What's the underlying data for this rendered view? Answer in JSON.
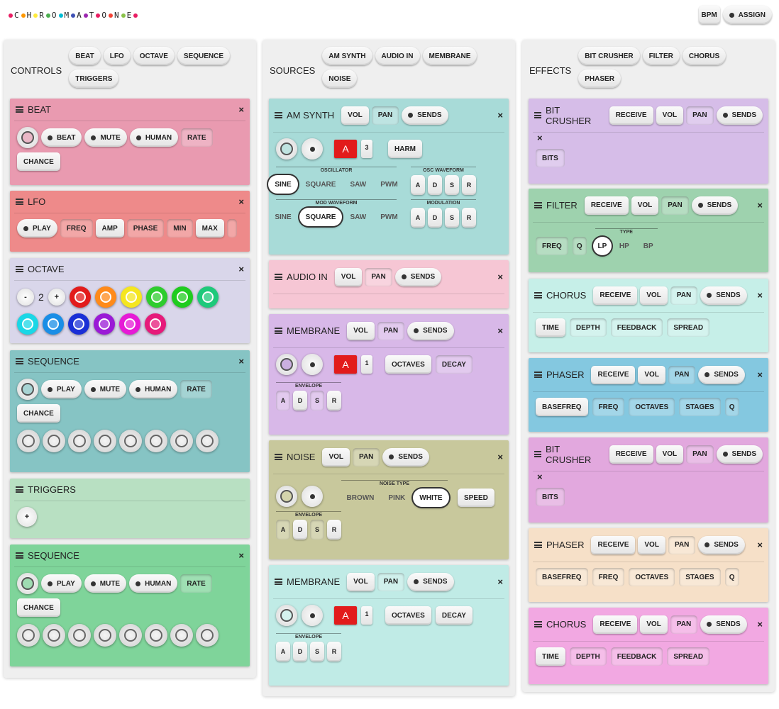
{
  "app": {
    "logo_letters": [
      "C",
      "H",
      "R",
      "O",
      "M",
      "A",
      "T",
      "O",
      "N",
      "E"
    ],
    "logo_colors": [
      "#e91e63",
      "#ff9800",
      "#ffeb3b",
      "#4caf50",
      "#00bcd4",
      "#3f51b5",
      "#9c27b0",
      "#e91e63",
      "#f44336",
      "#8bc34a"
    ],
    "bpm_label": "BPM",
    "assign_label": "ASSIGN"
  },
  "controls": {
    "title": "CONTROLS",
    "tabs": [
      "BEAT",
      "LFO",
      "OCTAVE",
      "SEQUENCE",
      "TRIGGERS"
    ],
    "beat": {
      "title": "BEAT",
      "color": "#e99ab0",
      "beat_label": "BEAT",
      "mute_label": "MUTE",
      "human_label": "HUMAN",
      "rate_label": "RATE",
      "chance_label": "CHANCE"
    },
    "lfo": {
      "title": "LFO",
      "color": "#ee8a8a",
      "play_label": "PLAY",
      "freq_label": "FREQ",
      "amp_label": "AMP",
      "phase_label": "PHASE",
      "min_label": "MIN",
      "max_label": "MAX"
    },
    "octave": {
      "title": "OCTAVE",
      "color": "#d9d6ea",
      "minus_label": "-",
      "value": "2",
      "plus_label": "+",
      "colors": [
        "#e21b1b",
        "#ff8a1a",
        "#f5e620",
        "#2ecc2e",
        "#1fcc1f",
        "#1ec97a",
        "#1ad7e6",
        "#1a8ee6",
        "#1a2fd6",
        "#9a1ad6",
        "#e61ad6",
        "#e61a7a"
      ]
    },
    "sequence1": {
      "title": "SEQUENCE",
      "color": "#86c4c4",
      "play_label": "PLAY",
      "mute_label": "MUTE",
      "human_label": "HUMAN",
      "rate_label": "RATE",
      "chance_label": "CHANCE"
    },
    "triggers": {
      "title": "TRIGGERS",
      "color": "#b8e0c2",
      "plus_label": "+"
    },
    "sequence2": {
      "title": "SEQUENCE",
      "color": "#7fd49a",
      "play_label": "PLAY",
      "mute_label": "MUTE",
      "human_label": "HUMAN",
      "rate_label": "RATE",
      "chance_label": "CHANCE"
    }
  },
  "sources": {
    "title": "SOURCES",
    "tabs": [
      "AM SYNTH",
      "AUDIO IN",
      "MEMBRANE",
      "NOISE"
    ],
    "amsynth": {
      "title": "AM SYNTH",
      "color": "#a8dbd8",
      "vol": "VOL",
      "pan": "PAN",
      "sends": "SENDS",
      "note": "A",
      "num": "3",
      "harm": "HARM",
      "oscillator_label": "OSCILLATOR",
      "osc_waves": [
        "SINE",
        "SQUARE",
        "SAW",
        "PWM"
      ],
      "osc_waveform_label": "OSC WAVEFORM",
      "adsr": [
        "A",
        "D",
        "S",
        "R"
      ],
      "mod_waveform_label": "MOD WAVEFORM",
      "mod_waves": [
        "SINE",
        "SQUARE",
        "SAW",
        "PWM"
      ],
      "modulation_label": "MODULATION"
    },
    "audioin": {
      "title": "AUDIO IN",
      "color": "#f6c6d4",
      "vol": "VOL",
      "pan": "PAN",
      "sends": "SENDS"
    },
    "membrane1": {
      "title": "MEMBRANE",
      "color": "#d8b8e8",
      "vol": "VOL",
      "pan": "PAN",
      "sends": "SENDS",
      "note": "A",
      "num": "1",
      "octaves": "OCTAVES",
      "decay": "DECAY",
      "envelope_label": "ENVELOPE",
      "adsr": [
        "A",
        "D",
        "S",
        "R"
      ]
    },
    "noise": {
      "title": "NOISE",
      "color": "#c8c89c",
      "vol": "VOL",
      "pan": "PAN",
      "sends": "SENDS",
      "noise_type_label": "NOISE TYPE",
      "types": [
        "BROWN",
        "PINK",
        "WHITE"
      ],
      "speed": "SPEED",
      "envelope_label": "ENVELOPE",
      "adsr": [
        "A",
        "D",
        "S",
        "R"
      ]
    },
    "membrane2": {
      "title": "MEMBRANE",
      "color": "#c0ebe6",
      "vol": "VOL",
      "pan": "PAN",
      "sends": "SENDS",
      "note": "A",
      "num": "1",
      "octaves": "OCTAVES",
      "decay": "DECAY",
      "envelope_label": "ENVELOPE",
      "adsr": [
        "A",
        "D",
        "S",
        "R"
      ]
    }
  },
  "effects": {
    "title": "EFFECTS",
    "tabs": [
      "BIT CRUSHER",
      "FILTER",
      "CHORUS",
      "PHASER"
    ],
    "bitcrusher1": {
      "title": "BIT CRUSHER",
      "color": "#d6bde8",
      "receive": "RECEIVE",
      "vol": "VOL",
      "pan": "PAN",
      "sends": "SENDS",
      "bits": "BITS"
    },
    "filter": {
      "title": "FILTER",
      "color": "#9ed2ae",
      "receive": "RECEIVE",
      "vol": "VOL",
      "pan": "PAN",
      "sends": "SENDS",
      "freq": "FREQ",
      "q": "Q",
      "type_label": "TYPE",
      "types": [
        "LP",
        "HP",
        "BP"
      ]
    },
    "chorus1": {
      "title": "CHORUS",
      "color": "#c6efe8",
      "receive": "RECEIVE",
      "vol": "VOL",
      "pan": "PAN",
      "sends": "SENDS",
      "params": [
        "TIME",
        "DEPTH",
        "FEEDBACK",
        "SPREAD"
      ]
    },
    "phaser1": {
      "title": "PHASER",
      "color": "#84c8e0",
      "receive": "RECEIVE",
      "vol": "VOL",
      "pan": "PAN",
      "sends": "SENDS",
      "params": [
        "BASEFREQ",
        "FREQ",
        "OCTAVES",
        "STAGES",
        "Q"
      ]
    },
    "bitcrusher2": {
      "title": "BIT CRUSHER",
      "color": "#e2a8de",
      "receive": "RECEIVE",
      "vol": "VOL",
      "pan": "PAN",
      "sends": "SENDS",
      "bits": "BITS"
    },
    "phaser2": {
      "title": "PHASER",
      "color": "#f6e0c8",
      "receive": "RECEIVE",
      "vol": "VOL",
      "pan": "PAN",
      "sends": "SENDS",
      "params": [
        "BASEFREQ",
        "FREQ",
        "OCTAVES",
        "STAGES",
        "Q"
      ]
    },
    "chorus2": {
      "title": "CHORUS",
      "color": "#f2a8e2",
      "receive": "RECEIVE",
      "vol": "VOL",
      "pan": "PAN",
      "sends": "SENDS",
      "params": [
        "TIME",
        "DEPTH",
        "FEEDBACK",
        "SPREAD"
      ]
    }
  },
  "close_symbol": "×"
}
